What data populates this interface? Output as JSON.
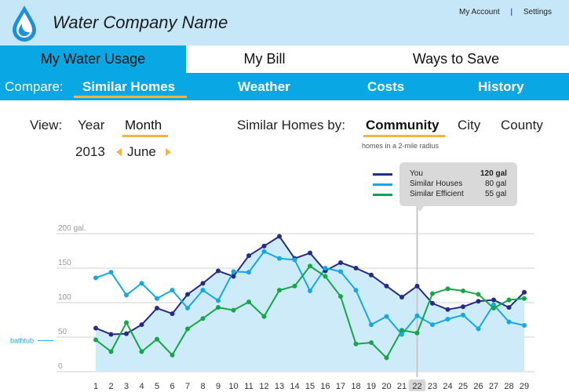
{
  "header": {
    "company_name": "Water Company Name",
    "links": [
      "My Account",
      "Settings"
    ],
    "separator": "|",
    "logo_icon": "water-drop-icon"
  },
  "main_tabs": [
    {
      "label": "My Water Usage",
      "active": true
    },
    {
      "label": "My Bill",
      "active": false
    },
    {
      "label": "Ways to Save",
      "active": false
    }
  ],
  "compare": {
    "label": "Compare:",
    "items": [
      {
        "label": "Similar Homes",
        "active": true
      },
      {
        "label": "Weather",
        "active": false
      },
      {
        "label": "Costs",
        "active": false
      },
      {
        "label": "History",
        "active": false
      }
    ]
  },
  "view": {
    "label": "View:",
    "options": [
      {
        "label": "Year",
        "active": false
      },
      {
        "label": "Month",
        "active": true
      }
    ],
    "year": "2013",
    "month": "June",
    "prev_icon": "arrow-left-icon",
    "next_icon": "arrow-right-icon"
  },
  "similar_by": {
    "label": "Similar Homes by:",
    "options": [
      {
        "label": "Community",
        "active": true
      },
      {
        "label": "City",
        "active": false
      },
      {
        "label": "County",
        "active": false
      }
    ],
    "note": "homes in a 2-mile radius"
  },
  "legend": {
    "rows": [
      {
        "name": "You",
        "value": "120 gal",
        "color": "#262c84",
        "bold": true
      },
      {
        "name": "Similar Houses",
        "value": "80 gal",
        "color": "#16a8e2",
        "bold": false
      },
      {
        "name": "Similar Efficient",
        "value": "55 gal",
        "color": "#16a548",
        "bold": false
      }
    ]
  },
  "colors": {
    "accent": "#0aa7e5",
    "header_bg": "#c5e7f8",
    "underline": "#f5b441",
    "area_fill": "#cdebf8"
  },
  "chart_data": {
    "type": "line",
    "x": [
      1,
      2,
      3,
      4,
      5,
      6,
      7,
      8,
      9,
      10,
      11,
      12,
      13,
      14,
      15,
      16,
      17,
      18,
      19,
      20,
      21,
      22,
      23,
      24,
      25,
      26,
      27,
      28,
      29
    ],
    "highlight_x": 22,
    "series": [
      {
        "name": "You",
        "color": "#262c84",
        "values": [
          63,
          54,
          55,
          68,
          92,
          84,
          112,
          128,
          146,
          138,
          168,
          182,
          196,
          164,
          172,
          146,
          158,
          150,
          140,
          124,
          108,
          124,
          99,
          90,
          94,
          102,
          104,
          93,
          115
        ]
      },
      {
        "name": "Similar Houses",
        "color": "#16a8e2",
        "values": [
          136,
          144,
          111,
          128,
          106,
          118,
          92,
          118,
          103,
          145,
          144,
          174,
          164,
          162,
          117,
          150,
          145,
          118,
          68,
          80,
          54,
          81,
          68,
          76,
          82,
          62,
          97,
          72,
          67
        ]
      },
      {
        "name": "Similar Efficient",
        "color": "#16a548",
        "values": [
          46,
          29,
          71,
          29,
          47,
          24,
          62,
          77,
          93,
          89,
          101,
          80,
          118,
          124,
          153,
          138,
          109,
          40,
          42,
          20,
          60,
          56,
          113,
          120,
          117,
          112,
          92,
          104,
          106
        ]
      }
    ],
    "area_series": "You",
    "ylim": [
      0,
      220
    ],
    "y_ticks": [
      {
        "value": 200,
        "label": "200 gal."
      },
      {
        "value": 150,
        "label": "150"
      },
      {
        "value": 100,
        "label": "100"
      },
      {
        "value": 50,
        "label": "50"
      },
      {
        "value": 0,
        "label": "0"
      }
    ],
    "reference_line": {
      "value": 45,
      "label": "bathtub"
    },
    "grid": true
  }
}
